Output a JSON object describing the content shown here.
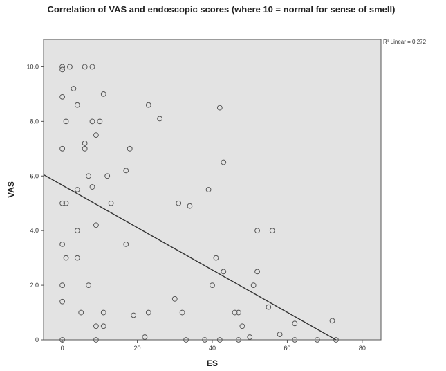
{
  "chart_data": {
    "type": "scatter",
    "title": "Correlation of VAS and endoscopic scores (where 10 = normal for sense of smell)",
    "xlabel": "ES",
    "ylabel": "VAS",
    "xlim": [
      -5,
      85
    ],
    "ylim": [
      0,
      11
    ],
    "x_ticks": [
      0,
      20,
      40,
      60,
      80
    ],
    "x_tick_labels": [
      "0",
      "20",
      "40",
      "60",
      "80"
    ],
    "y_ticks": [
      0,
      2,
      4,
      6,
      8,
      10
    ],
    "y_tick_labels": [
      "0",
      "2.0",
      "4.0",
      "6.0",
      "8.0",
      "10.0"
    ],
    "annotation": "R² Linear = 0.272",
    "fit_line": {
      "x": [
        -5,
        73
      ],
      "y": [
        6.05,
        0
      ]
    },
    "grid": false,
    "plot_background": "#e3e3e3",
    "marker_color": "#555555",
    "line_color": "#333333",
    "points": [
      [
        0,
        10.0
      ],
      [
        0,
        9.9
      ],
      [
        2,
        10.0
      ],
      [
        6,
        10.0
      ],
      [
        8,
        10.0
      ],
      [
        0,
        8.9
      ],
      [
        3,
        9.2
      ],
      [
        4,
        8.6
      ],
      [
        11,
        9.0
      ],
      [
        1,
        8.0
      ],
      [
        8,
        8.0
      ],
      [
        10,
        8.0
      ],
      [
        9,
        7.5
      ],
      [
        0,
        7.0
      ],
      [
        6,
        7.2
      ],
      [
        6,
        7.0
      ],
      [
        18,
        7.0
      ],
      [
        7,
        6.0
      ],
      [
        12,
        6.0
      ],
      [
        17,
        6.2
      ],
      [
        8,
        5.6
      ],
      [
        4,
        5.5
      ],
      [
        0,
        5.0
      ],
      [
        1,
        5.0
      ],
      [
        13,
        5.0
      ],
      [
        4,
        4.0
      ],
      [
        9,
        4.2
      ],
      [
        0,
        3.5
      ],
      [
        1,
        3.0
      ],
      [
        4,
        3.0
      ],
      [
        17,
        3.5
      ],
      [
        0,
        2.0
      ],
      [
        7,
        2.0
      ],
      [
        0,
        1.4
      ],
      [
        5,
        1.0
      ],
      [
        11,
        1.0
      ],
      [
        9,
        0.5
      ],
      [
        11,
        0.5
      ],
      [
        0,
        0.0
      ],
      [
        9,
        0.0
      ],
      [
        23,
        8.6
      ],
      [
        26,
        8.1
      ],
      [
        42,
        8.5
      ],
      [
        43,
        6.5
      ],
      [
        39,
        5.5
      ],
      [
        31,
        5.0
      ],
      [
        34,
        4.9
      ],
      [
        41,
        3.0
      ],
      [
        43,
        2.5
      ],
      [
        40,
        2.0
      ],
      [
        30,
        1.5
      ],
      [
        32,
        1.0
      ],
      [
        23,
        1.0
      ],
      [
        19,
        0.9
      ],
      [
        22,
        0.1
      ],
      [
        33,
        0.0
      ],
      [
        38,
        0.0
      ],
      [
        42,
        0.0
      ],
      [
        52,
        4.0
      ],
      [
        56,
        4.0
      ],
      [
        52,
        2.5
      ],
      [
        51,
        2.0
      ],
      [
        55,
        1.2
      ],
      [
        46,
        1.0
      ],
      [
        47,
        1.0
      ],
      [
        48,
        0.5
      ],
      [
        50,
        0.1
      ],
      [
        47,
        0.0
      ],
      [
        58,
        0.2
      ],
      [
        62,
        0.6
      ],
      [
        62,
        0.0
      ],
      [
        72,
        0.7
      ],
      [
        68,
        0.0
      ],
      [
        73,
        0.0
      ]
    ]
  }
}
